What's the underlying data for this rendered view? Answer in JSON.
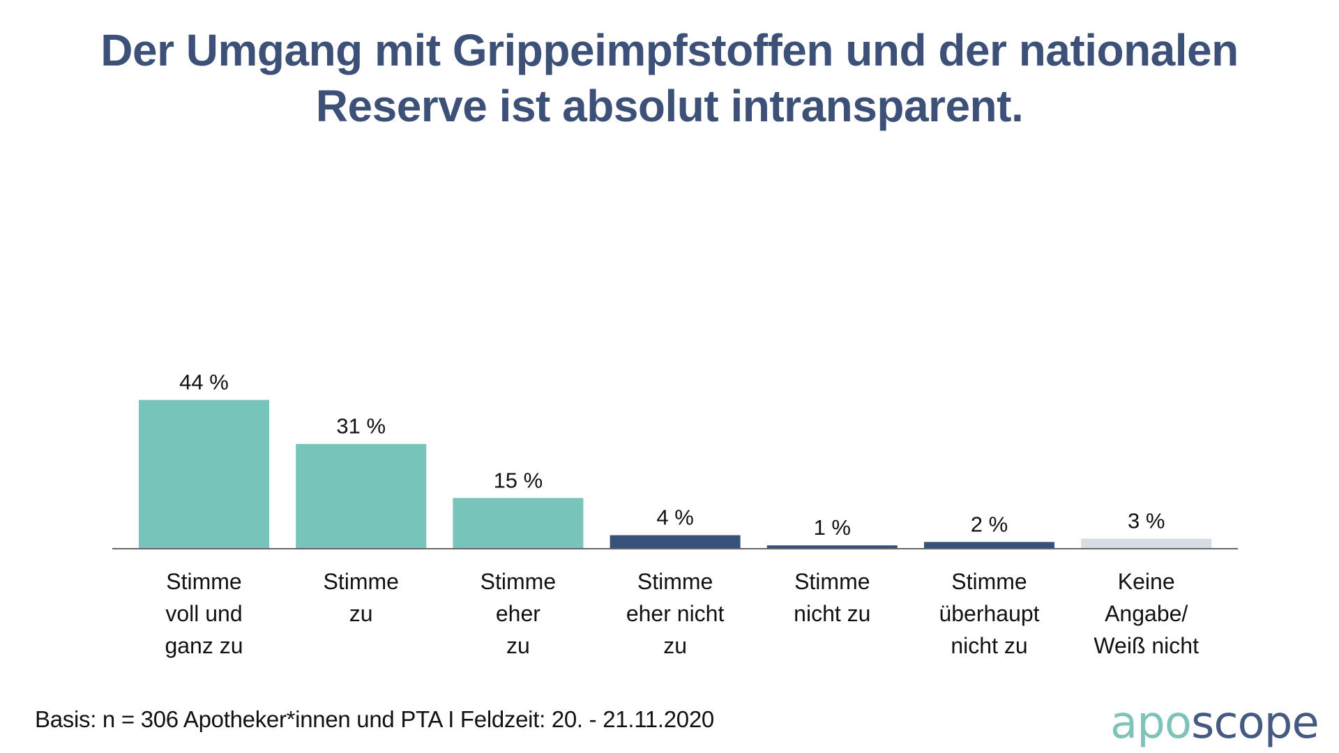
{
  "title": {
    "line1": "Der Umgang mit Grippeimpfstoffen und der nationalen",
    "line2": "Reserve ist absolut intransparent."
  },
  "footer": {
    "basis": "Basis: n = 306 Apotheker*innen und PTA I Feldzeit: 20. - 21.11.2020"
  },
  "logo": {
    "part1": "apo",
    "part2": "scope"
  },
  "colors": {
    "title": "#3d5178",
    "agree": "#76c4ba",
    "disagree": "#37527a",
    "no_answer": "#d8dce3",
    "axis": "#666666",
    "logo_apo": "#7ec3b9",
    "logo_scope": "#455a80"
  },
  "chart_data": {
    "type": "bar",
    "title": "Der Umgang mit Grippeimpfstoffen und der nationalen Reserve ist absolut intransparent.",
    "xlabel": "",
    "ylabel": "",
    "ylim": [
      0,
      50
    ],
    "grid": false,
    "legend": "none",
    "unit": "%",
    "categories": [
      [
        "Stimme",
        "voll und",
        "ganz zu"
      ],
      [
        "Stimme",
        "zu"
      ],
      [
        "Stimme",
        "eher",
        "zu"
      ],
      [
        "Stimme",
        "eher nicht",
        "zu"
      ],
      [
        "Stimme",
        "nicht zu"
      ],
      [
        "Stimme",
        "überhaupt",
        "nicht zu"
      ],
      [
        "Keine",
        "Angabe/",
        "Weiß nicht"
      ]
    ],
    "values": [
      44,
      31,
      15,
      4,
      1,
      2,
      3
    ],
    "value_labels": [
      "44 %",
      "31 %",
      "15 %",
      "4 %",
      "1 %",
      "2 %",
      "3 %"
    ],
    "bar_colors": [
      "#76c4ba",
      "#76c4ba",
      "#76c4ba",
      "#37527a",
      "#37527a",
      "#37527a",
      "#d8dce3"
    ]
  }
}
